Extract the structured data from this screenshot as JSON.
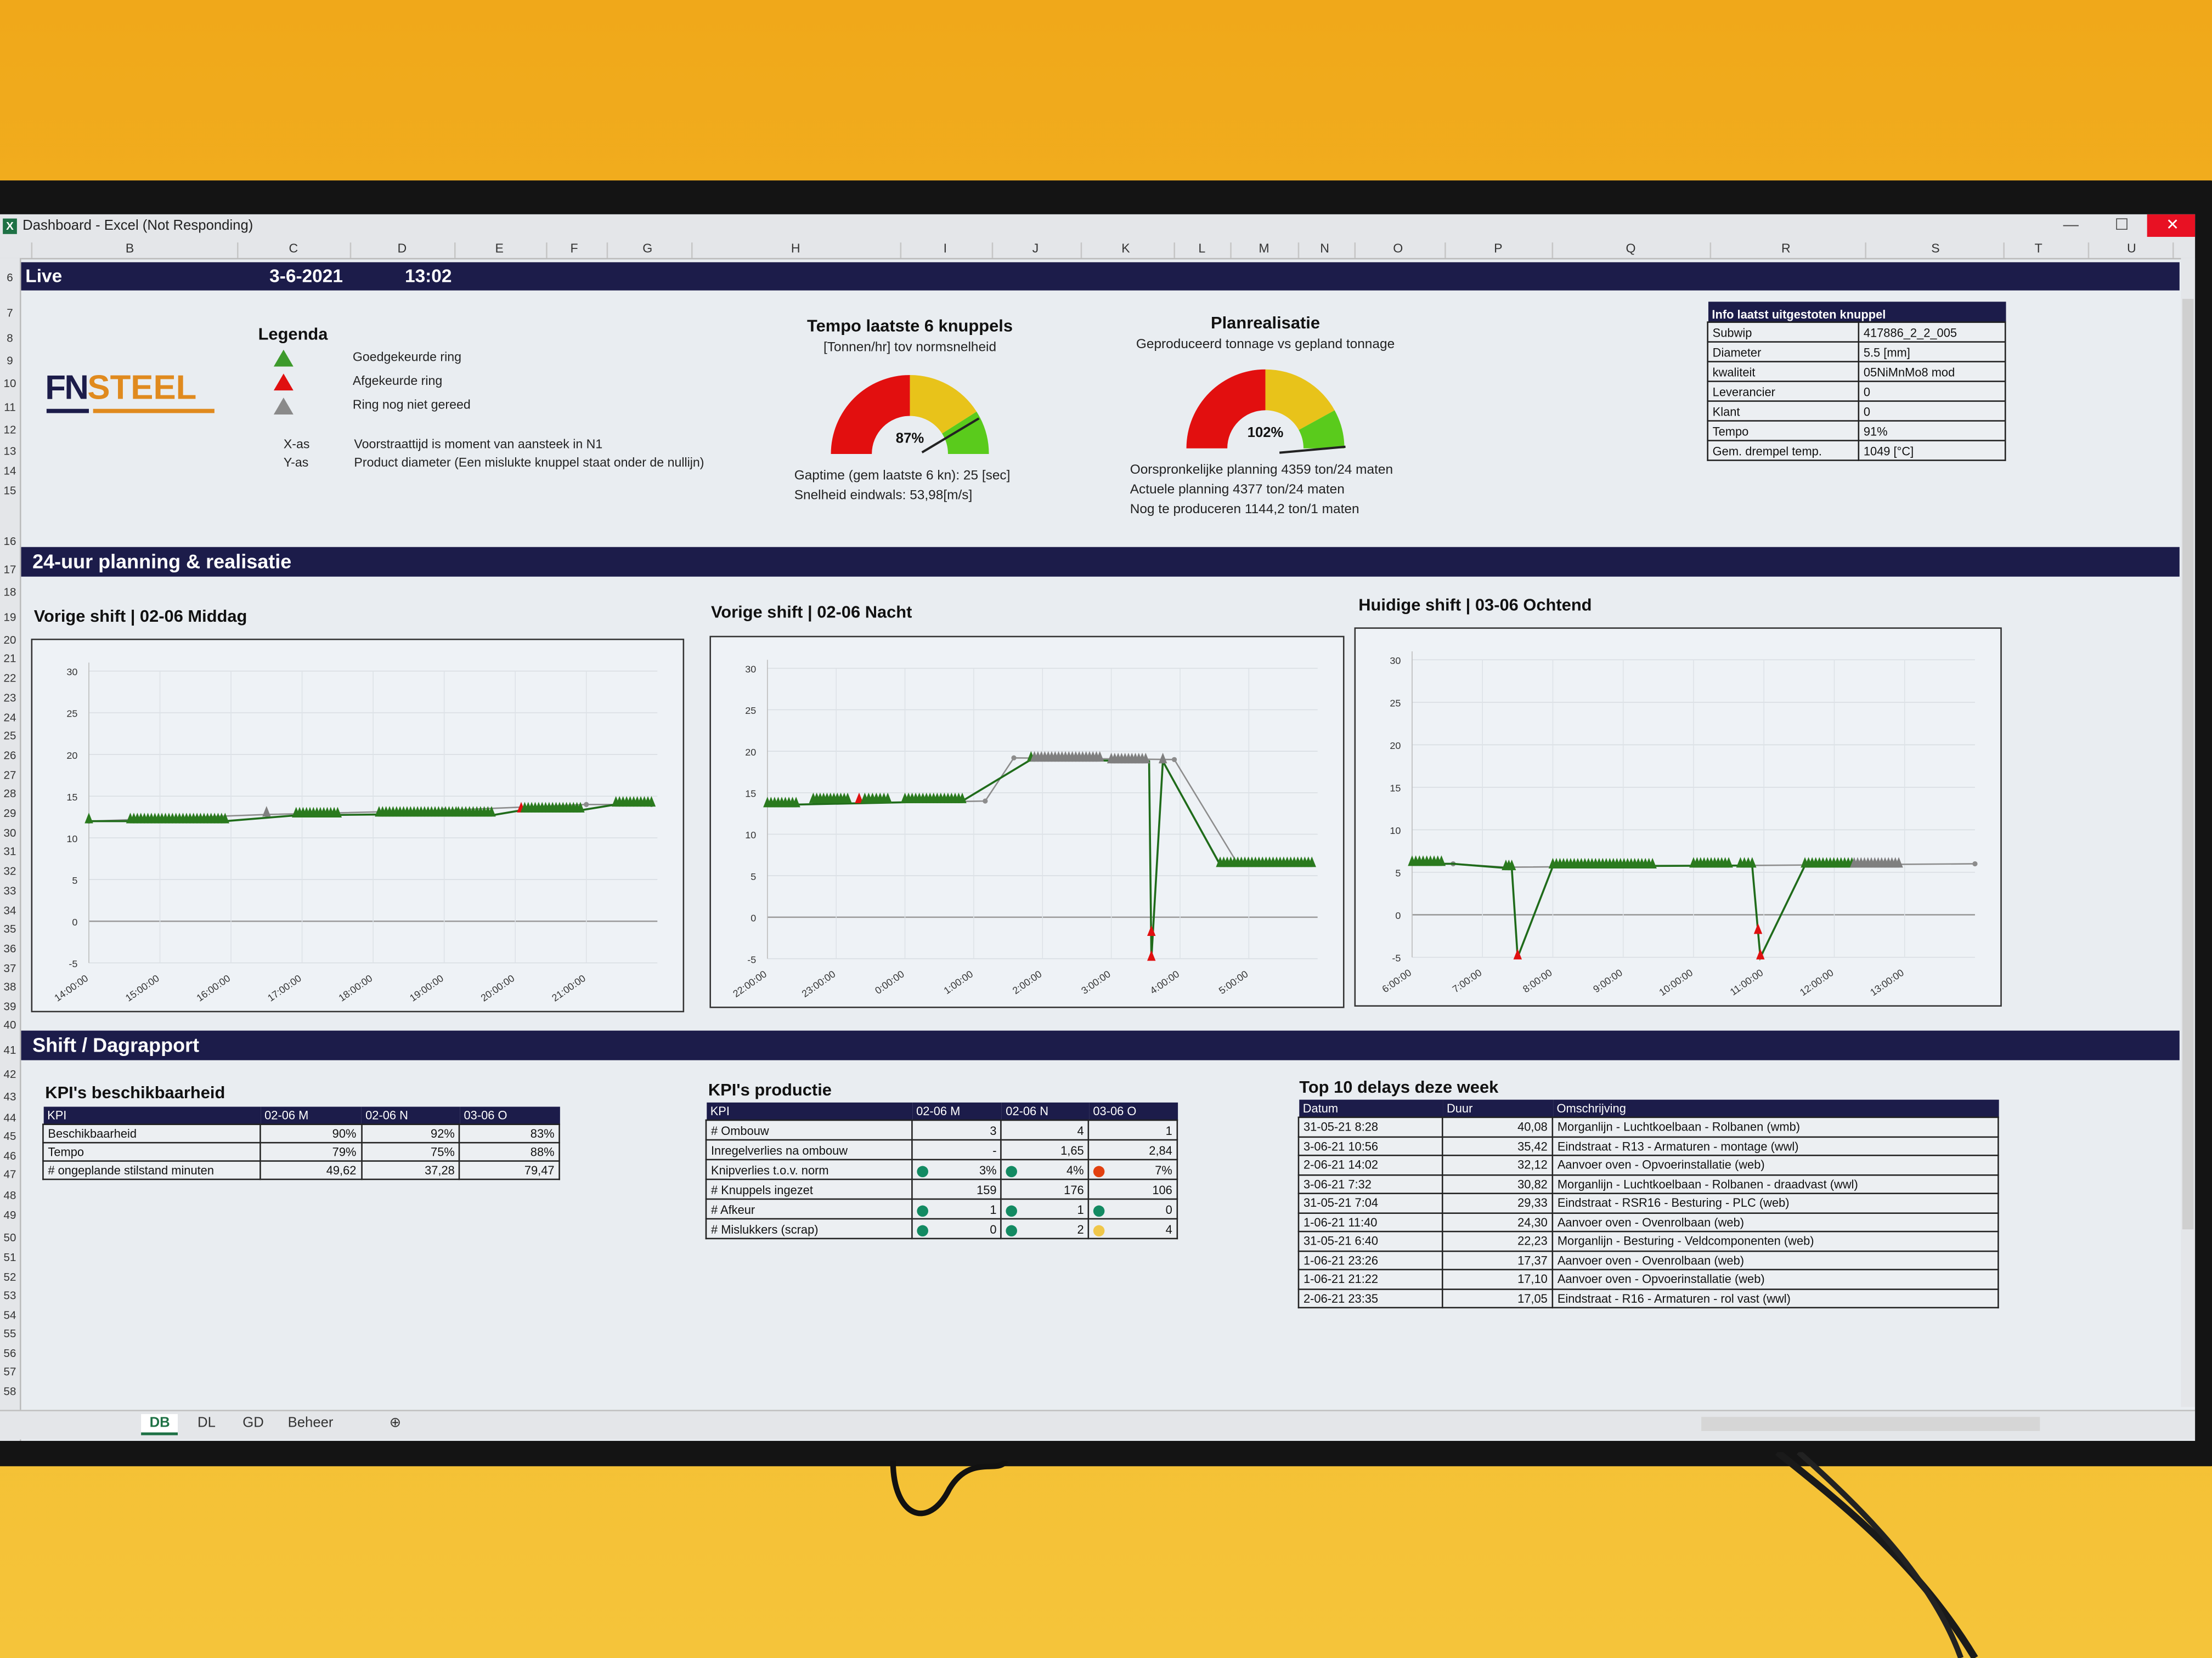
{
  "window": {
    "title": "Dashboard - Excel (Not Responding)",
    "app_icon": "excel-icon",
    "close": "✕",
    "minimize": "—",
    "maximize": "☐"
  },
  "columns": [
    "B",
    "C",
    "D",
    "E",
    "F",
    "G",
    "H",
    "I",
    "J",
    "K",
    "L",
    "M",
    "N",
    "O",
    "P",
    "Q",
    "R",
    "S",
    "T",
    "U"
  ],
  "rows": [
    6,
    7,
    8,
    9,
    10,
    11,
    12,
    13,
    14,
    15,
    16,
    17,
    18,
    19,
    20,
    21,
    22,
    23,
    24,
    25,
    26,
    27,
    28,
    29,
    30,
    31,
    32,
    33,
    34,
    35,
    36,
    37,
    38,
    39,
    40,
    41,
    42,
    43,
    44,
    45,
    46,
    47,
    48,
    49,
    50,
    51,
    52,
    53,
    54,
    55,
    56,
    57,
    58
  ],
  "header": {
    "status": "Live",
    "date": "3-6-2021",
    "time": "13:02"
  },
  "logo": {
    "text_left": "FN",
    "text_right": "STEEL",
    "colors": {
      "navy": "#1c1c4a",
      "orange": "#e08a1e"
    }
  },
  "legend": {
    "title": "Legenda",
    "items": [
      {
        "icon": "green-triangle-icon",
        "color": "#3d9a2c",
        "label": "Goedgekeurde ring"
      },
      {
        "icon": "red-triangle-icon",
        "color": "#e01010",
        "label": "Afgekeurde ring"
      },
      {
        "icon": "gray-triangle-icon",
        "color": "#8a8a8a",
        "label": "Ring nog niet gereed"
      }
    ],
    "axes": [
      {
        "key": "X-as",
        "text": "Voorstraattijd is moment van aansteek in N1"
      },
      {
        "key": "Y-as",
        "text": "Product diameter (Een mislukte knuppel staat onder de nullijn)"
      }
    ]
  },
  "gauges": [
    {
      "title": "Tempo laatste 6 knuppels",
      "subtitle": "[Tonnen/hr] tov normsnelheid",
      "value": 87,
      "label": "87%",
      "lines": [
        "Gaptime (gem laatste 6 kn): 25 [sec]",
        "Snelheid eindwals: 53,98[m/s]"
      ]
    },
    {
      "title": "Planrealisatie",
      "subtitle": "Geproduceerd tonnage vs gepland tonnage",
      "value": 102,
      "label": "102%",
      "lines": [
        "Oorspronkelijke planning 4359 ton/24 maten",
        "Actuele planning 4377 ton/24 maten",
        "Nog te produceren 1144,2 ton/1 maten"
      ]
    }
  ],
  "gauge_colors": {
    "red": "#e20f0f",
    "yellow": "#e8c31a",
    "green": "#5acb1c"
  },
  "info": {
    "title": "Info laatst uitgestoten knuppel",
    "rows": [
      [
        "Subwip",
        "417886_2_2_005"
      ],
      [
        "Diameter",
        "5.5 [mm]"
      ],
      [
        "kwaliteit",
        "05NiMnMo8 mod"
      ],
      [
        "Leverancier",
        "0"
      ],
      [
        "Klant",
        "0"
      ],
      [
        "Tempo",
        "91%"
      ],
      [
        "Gem. drempel temp.",
        "1049 [°C]"
      ]
    ]
  },
  "sections": {
    "planning": "24-uur planning & realisatie",
    "shift": "Shift / Dagrapport"
  },
  "chart_colors": {
    "good": "#2a7a1e",
    "rejected": "#e01010",
    "pending": "#7f7f7f",
    "line_good": "#1f6b1a",
    "line_plan": "#8c8c8c"
  },
  "chart_data": [
    {
      "type": "line",
      "title": "Vorige shift  | 02-06 Middag",
      "xlim": [
        "14:00",
        "22:00"
      ],
      "ylim": [
        -5,
        30
      ],
      "x_ticks": [
        "14:00:00",
        "15:00:00",
        "16:00:00",
        "17:00:00",
        "18:00:00",
        "19:00:00",
        "20:00:00",
        "21:00:00"
      ],
      "y_ticks": [
        30,
        25,
        20,
        15,
        10,
        5,
        0,
        -5
      ],
      "grid": true,
      "green_line": [
        [
          "14:00",
          12
        ],
        [
          "15:55",
          12
        ],
        [
          "16:55",
          12.7
        ],
        [
          "18:05",
          12.8
        ],
        [
          "19:40",
          12.7
        ],
        [
          "20:05",
          13.3
        ],
        [
          "20:55",
          13.3
        ],
        [
          "21:25",
          14
        ],
        [
          "21:55",
          14
        ]
      ],
      "gray_line": [
        [
          "14:00",
          12
        ],
        [
          "16:30",
          12.8
        ],
        [
          "19:00",
          13.3
        ],
        [
          "21:00",
          14
        ],
        [
          "21:55",
          14
        ]
      ],
      "marker_groups": [
        {
          "from": "14:00",
          "to": "14:00",
          "y": 12,
          "status": "good"
        },
        {
          "from": "14:35",
          "to": "15:55",
          "y": 12,
          "status": "good"
        },
        {
          "from": "16:30",
          "to": "16:30",
          "y": 12.8,
          "status": "pending"
        },
        {
          "from": "16:55",
          "to": "17:30",
          "y": 12.7,
          "status": "good"
        },
        {
          "from": "18:05",
          "to": "19:10",
          "y": 12.8,
          "status": "good"
        },
        {
          "from": "19:12",
          "to": "19:40",
          "y": 12.8,
          "status": "good"
        },
        {
          "from": "20:05",
          "to": "20:05",
          "y": 13.3,
          "status": "rejected"
        },
        {
          "from": "20:08",
          "to": "20:55",
          "y": 13.3,
          "status": "good"
        },
        {
          "from": "21:25",
          "to": "21:55",
          "y": 14,
          "status": "good"
        }
      ]
    },
    {
      "type": "line",
      "title": "Vorige shift | 02-06 Nacht",
      "xlim": [
        "22:00",
        "6:00"
      ],
      "ylim": [
        -5,
        30
      ],
      "x_ticks": [
        "22:00:00",
        "23:00:00",
        "0:00:00",
        "1:00:00",
        "2:00:00",
        "3:00:00",
        "4:00:00",
        "5:00:00"
      ],
      "y_ticks": [
        30,
        25,
        20,
        15,
        10,
        5,
        0,
        -5
      ],
      "grid": true,
      "green_line": [
        [
          "22:00",
          13.5
        ],
        [
          "0:50",
          14
        ],
        [
          "1:50",
          19
        ],
        [
          "3:33",
          18.8
        ],
        [
          "3:35",
          -5
        ],
        [
          "3:45",
          18.8
        ],
        [
          "4:35",
          6.3
        ],
        [
          "5:55",
          6.3
        ]
      ],
      "gray_line": [
        [
          "22:25",
          13.6
        ],
        [
          "1:10",
          14
        ],
        [
          "1:35",
          19.2
        ],
        [
          "3:55",
          19
        ],
        [
          "4:50",
          6.5
        ]
      ],
      "marker_groups": [
        {
          "from": "22:00",
          "to": "22:25",
          "y": 13.5,
          "status": "good"
        },
        {
          "from": "22:40",
          "to": "23:10",
          "y": 14,
          "status": "good"
        },
        {
          "from": "23:20",
          "to": "23:20",
          "y": 14,
          "status": "rejected"
        },
        {
          "from": "23:25",
          "to": "23:45",
          "y": 14,
          "status": "good"
        },
        {
          "from": "0:00",
          "to": "0:50",
          "y": 14,
          "status": "good"
        },
        {
          "from": "1:50",
          "to": "1:50",
          "y": 19,
          "status": "good"
        },
        {
          "from": "1:53",
          "to": "2:50",
          "y": 19,
          "status": "pending"
        },
        {
          "from": "3:00",
          "to": "3:30",
          "y": 18.8,
          "status": "pending"
        },
        {
          "from": "3:35",
          "to": "3:35",
          "y": -2,
          "status": "rejected"
        },
        {
          "from": "3:35",
          "to": "3:35",
          "y": -5,
          "status": "rejected"
        },
        {
          "from": "3:45",
          "to": "3:45",
          "y": 18.8,
          "status": "pending"
        },
        {
          "from": "4:35",
          "to": "5:55",
          "y": 6.3,
          "status": "good"
        }
      ]
    },
    {
      "type": "line",
      "title": "Huidige shift | 03-06 Ochtend",
      "xlim": [
        "6:00",
        "14:00"
      ],
      "ylim": [
        -5,
        30
      ],
      "x_ticks": [
        "6:00:00",
        "7:00:00",
        "8:00:00",
        "9:00:00",
        "10:00:00",
        "11:00:00",
        "12:00:00",
        "13:00:00"
      ],
      "y_ticks": [
        30,
        25,
        20,
        15,
        10,
        5,
        0,
        -5
      ],
      "grid": true,
      "green_line": [
        [
          "6:00",
          6
        ],
        [
          "6:35",
          6
        ],
        [
          "7:20",
          5.5
        ],
        [
          "7:25",
          5.5
        ],
        [
          "7:30",
          -5
        ],
        [
          "8:00",
          5.7
        ],
        [
          "10:50",
          5.8
        ],
        [
          "10:55",
          -2
        ],
        [
          "10:57",
          -5
        ],
        [
          "11:35",
          5.8
        ],
        [
          "12:15",
          5.8
        ]
      ],
      "gray_line": [
        [
          "6:35",
          6
        ],
        [
          "7:20",
          5.6
        ],
        [
          "14:00",
          6
        ]
      ],
      "marker_groups": [
        {
          "from": "6:00",
          "to": "6:25",
          "y": 6,
          "status": "good"
        },
        {
          "from": "7:20",
          "to": "7:25",
          "y": 5.5,
          "status": "good"
        },
        {
          "from": "7:30",
          "to": "7:30",
          "y": -5,
          "status": "rejected"
        },
        {
          "from": "8:00",
          "to": "9:25",
          "y": 5.7,
          "status": "good"
        },
        {
          "from": "10:00",
          "to": "10:30",
          "y": 5.8,
          "status": "good"
        },
        {
          "from": "10:40",
          "to": "10:50",
          "y": 5.8,
          "status": "good"
        },
        {
          "from": "10:55",
          "to": "10:55",
          "y": -2,
          "status": "rejected"
        },
        {
          "from": "10:57",
          "to": "10:57",
          "y": -5,
          "status": "rejected"
        },
        {
          "from": "11:35",
          "to": "12:15",
          "y": 5.8,
          "status": "good"
        },
        {
          "from": "12:17",
          "to": "12:55",
          "y": 5.8,
          "status": "pending"
        }
      ]
    }
  ],
  "kpi_beschikbaarheid": {
    "title": "KPI's beschikbaarheid",
    "headers": [
      "KPI",
      "02-06 M",
      "02-06 N",
      "03-06 O"
    ],
    "rows": [
      [
        "Beschikbaarheid",
        "90%",
        "92%",
        "83%"
      ],
      [
        "Tempo",
        "79%",
        "75%",
        "88%"
      ],
      [
        "# ongeplande stilstand minuten",
        "49,62",
        "37,28",
        "79,47"
      ]
    ]
  },
  "kpi_productie": {
    "title": "KPI's productie",
    "headers": [
      "KPI",
      "02-06 M",
      "02-06 N",
      "03-06 O"
    ],
    "rows": [
      {
        "label": "# Ombouw",
        "cells": [
          {
            "v": "3"
          },
          {
            "v": "4"
          },
          {
            "v": "1"
          }
        ]
      },
      {
        "label": "Inregelverlies na ombouw",
        "cells": [
          {
            "v": "-"
          },
          {
            "v": "1,65"
          },
          {
            "v": "2,84"
          }
        ]
      },
      {
        "label": "Knipverlies t.o.v. norm",
        "cells": [
          {
            "v": "3%",
            "dot": "#138a62"
          },
          {
            "v": "4%",
            "dot": "#138a62"
          },
          {
            "v": "7%",
            "dot": "#e2400f"
          }
        ]
      },
      {
        "label": "# Knuppels ingezet",
        "cells": [
          {
            "v": "159"
          },
          {
            "v": "176"
          },
          {
            "v": "106"
          }
        ]
      },
      {
        "label": "# Afkeur",
        "cells": [
          {
            "v": "1",
            "dot": "#138a62"
          },
          {
            "v": "1",
            "dot": "#138a62"
          },
          {
            "v": "0",
            "dot": "#138a62"
          }
        ]
      },
      {
        "label": "# Mislukkers (scrap)",
        "cells": [
          {
            "v": "0",
            "dot": "#138a62"
          },
          {
            "v": "2",
            "dot": "#138a62"
          },
          {
            "v": "4",
            "dot": "#f0c74a"
          }
        ]
      }
    ]
  },
  "delays": {
    "title": "Top 10 delays deze week",
    "headers": [
      "Datum",
      "Duur",
      "Omschrijving"
    ],
    "rows": [
      [
        "31-05-21 8:28",
        "40,08",
        "Morganlijn - Luchtkoelbaan - Rolbanen (wmb)"
      ],
      [
        "3-06-21 10:56",
        "35,42",
        "Eindstraat - R13 - Armaturen - montage (wwl)"
      ],
      [
        "2-06-21 14:02",
        "32,12",
        "Aanvoer oven - Opvoerinstallatie (web)"
      ],
      [
        "3-06-21 7:32",
        "30,82",
        "Morganlijn - Luchtkoelbaan - Rolbanen - draadvast (wwl)"
      ],
      [
        "31-05-21 7:04",
        "29,33",
        "Eindstraat - RSR16 - Besturing - PLC (web)"
      ],
      [
        "1-06-21 11:40",
        "24,30",
        "Aanvoer oven - Ovenrolbaan (web)"
      ],
      [
        "31-05-21 6:40",
        "22,23",
        "Morganlijn - Besturing - Veldcomponenten (web)"
      ],
      [
        "1-06-21 23:26",
        "17,37",
        "Aanvoer oven - Ovenrolbaan (web)"
      ],
      [
        "1-06-21 21:22",
        "17,10",
        "Aanvoer oven - Opvoerinstallatie (web)"
      ],
      [
        "2-06-21 23:35",
        "17,05",
        "Eindstraat - R16 - Armaturen - rol vast (wwl)"
      ]
    ]
  },
  "sheet_tabs": [
    {
      "label": "DB",
      "active": true
    },
    {
      "label": "DL"
    },
    {
      "label": "GD"
    },
    {
      "label": "Beheer"
    }
  ],
  "add_sheet": "⊕"
}
